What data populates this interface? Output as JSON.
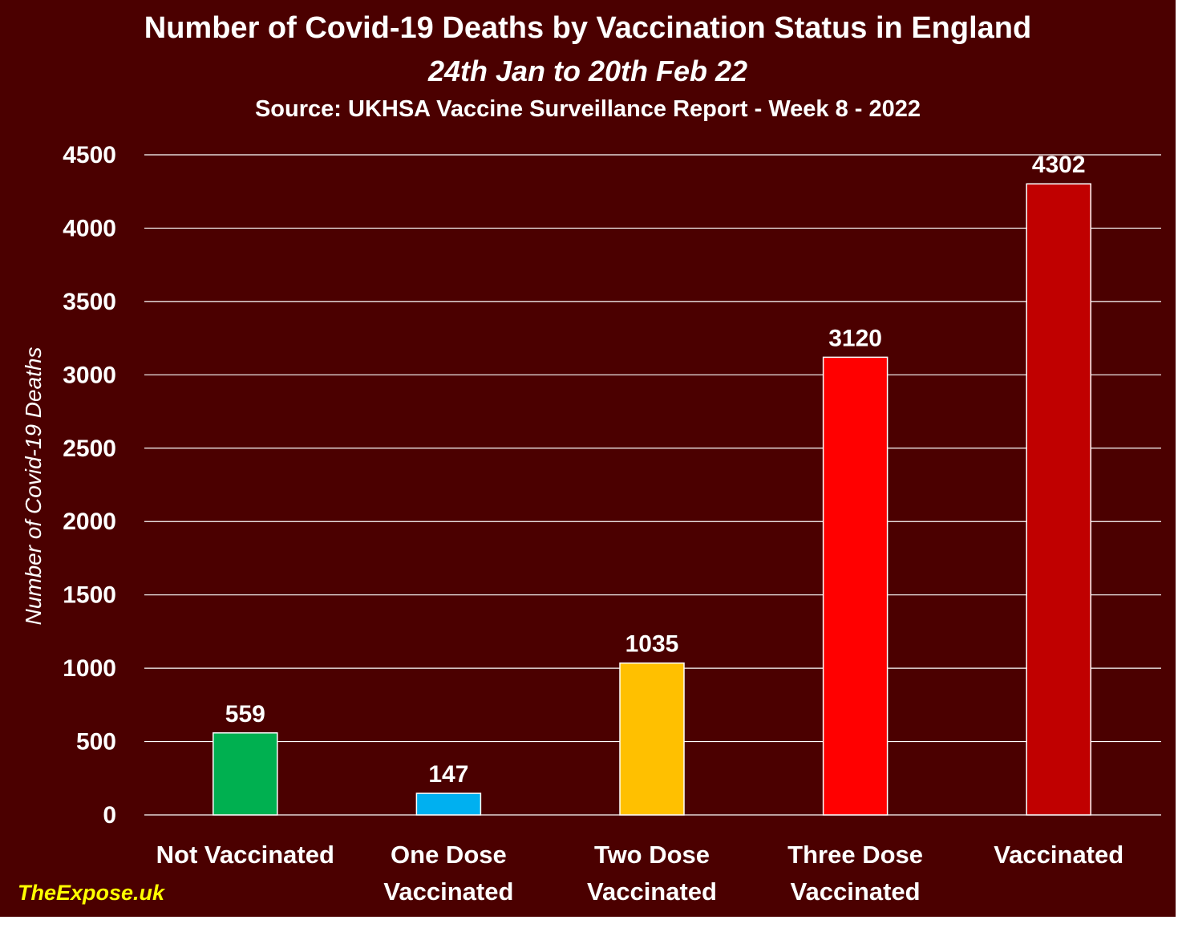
{
  "chart_data": {
    "type": "bar",
    "title": "Number of Covid-19 Deaths by Vaccination Status in England",
    "subtitle": "24th Jan to 20th Feb 22",
    "source": "Source: UKHSA Vaccine Surveillance Report - Week 8 - 2022",
    "ylabel": "Number of Covid-19 Deaths",
    "xlabel": "",
    "ylim": [
      0,
      4500
    ],
    "yticks": [
      0,
      500,
      1000,
      1500,
      2000,
      2500,
      3000,
      3500,
      4000,
      4500
    ],
    "grid": true,
    "legend": "none",
    "categories": [
      [
        "Not Vaccinated"
      ],
      [
        "One Dose",
        "Vaccinated"
      ],
      [
        "Two Dose",
        "Vaccinated"
      ],
      [
        "Three Dose",
        "Vaccinated"
      ],
      [
        "Vaccinated"
      ]
    ],
    "values": [
      559,
      147,
      1035,
      3120,
      4302
    ],
    "colors": [
      "#00b050",
      "#00b0f0",
      "#ffc000",
      "#ff0000",
      "#c00000"
    ],
    "background_color": "#4b0000",
    "gridline_color": "#ffffff",
    "text_color": "#ffffff"
  },
  "watermark": "TheExpose.uk",
  "watermark_color": "#ffff00"
}
